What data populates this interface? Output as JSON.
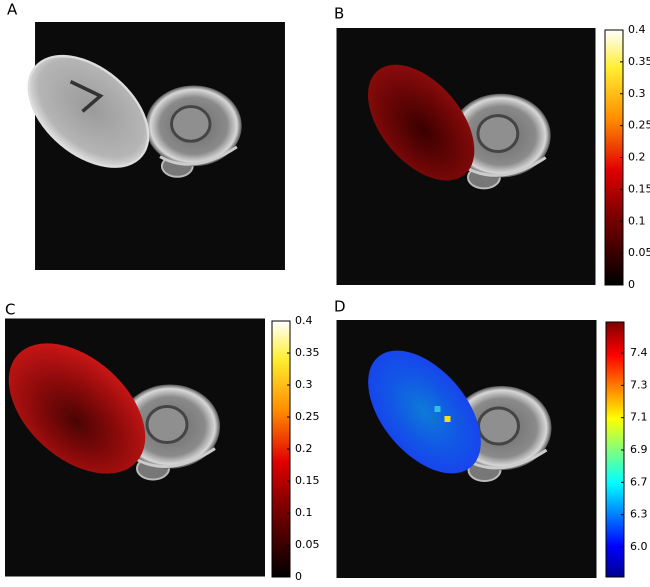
{
  "panels": [
    {
      "label": "A"
    },
    {
      "label": "B",
      "colorbar": {
        "lim": [
          0,
          0.4
        ],
        "ticks": [
          0,
          0.05,
          0.1,
          0.15,
          0.2,
          0.25,
          0.3,
          0.35,
          0.4
        ]
      }
    },
    {
      "label": "C",
      "colorbar": {
        "lim": [
          0,
          0.4
        ],
        "ticks": [
          0,
          0.05,
          0.1,
          0.15,
          0.2,
          0.25,
          0.3,
          0.35,
          0.4
        ]
      }
    },
    {
      "label": "D",
      "colorbar": {
        "tick_labels": [
          "7.4",
          "7.3",
          "7.1",
          "6.9",
          "6.7",
          "6.3",
          "6.0"
        ]
      }
    }
  ]
}
